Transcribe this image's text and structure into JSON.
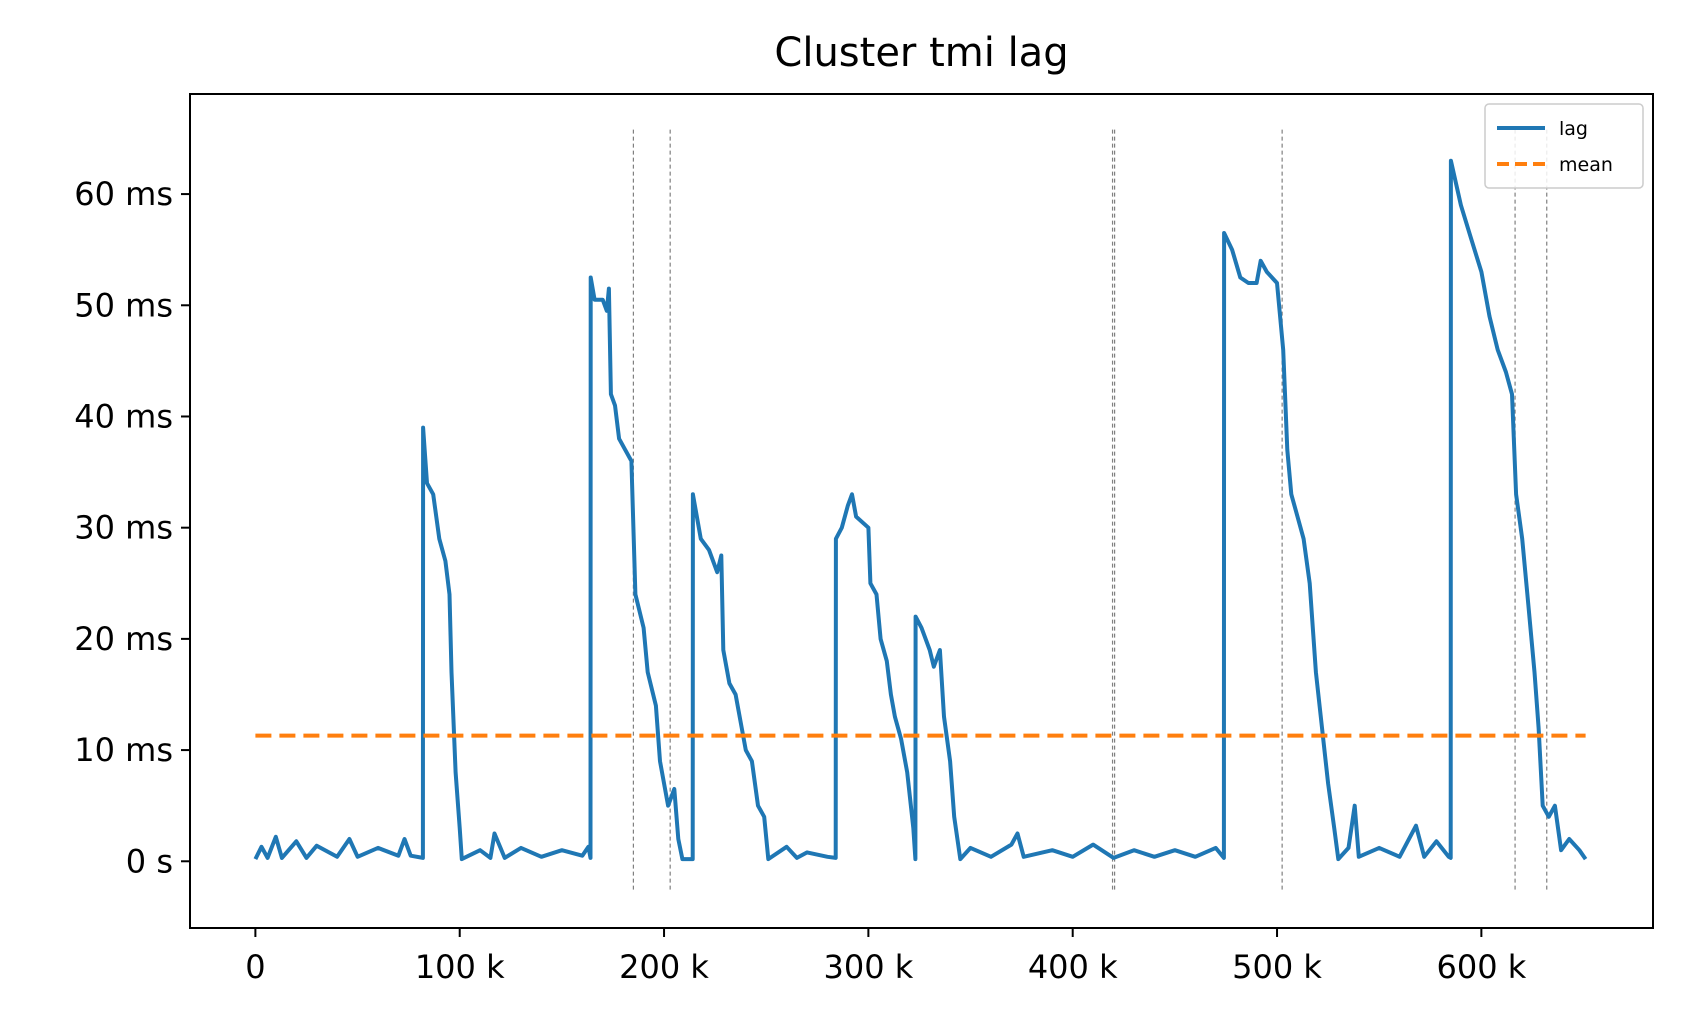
{
  "chart_data": {
    "type": "line",
    "title": "Cluster tmi lag",
    "xlabel": "",
    "ylabel": "",
    "xlim": [
      -32000,
      684000
    ],
    "ylim": [
      -6,
      69
    ],
    "x_ticks": [
      {
        "value": 0,
        "label": "0"
      },
      {
        "value": 100000,
        "label": "100 k"
      },
      {
        "value": 200000,
        "label": "200 k"
      },
      {
        "value": 300000,
        "label": "300 k"
      },
      {
        "value": 400000,
        "label": "400 k"
      },
      {
        "value": 500000,
        "label": "500 k"
      },
      {
        "value": 600000,
        "label": "600 k"
      }
    ],
    "y_ticks": [
      {
        "value": 0,
        "label": "0 s"
      },
      {
        "value": 10,
        "label": "10 ms"
      },
      {
        "value": 20,
        "label": "20 ms"
      },
      {
        "value": 30,
        "label": "30 ms"
      },
      {
        "value": 40,
        "label": "40 ms"
      },
      {
        "value": 50,
        "label": "50 ms"
      },
      {
        "value": 60,
        "label": "60 ms"
      }
    ],
    "grid": false,
    "legend_position": "top-right",
    "legend": [
      {
        "name": "lag",
        "style": "solid",
        "color": "#1f77b4"
      },
      {
        "name": "mean",
        "style": "dashed",
        "color": "#ff7f0e"
      }
    ],
    "series": [
      {
        "name": "lag",
        "color": "#1f77b4",
        "style": "solid",
        "points": [
          [
            0,
            0.2
          ],
          [
            3000,
            1.3
          ],
          [
            6000,
            0.3
          ],
          [
            10000,
            2.2
          ],
          [
            13000,
            0.3
          ],
          [
            20000,
            1.8
          ],
          [
            25000,
            0.3
          ],
          [
            30000,
            1.4
          ],
          [
            40000,
            0.4
          ],
          [
            46000,
            2.0
          ],
          [
            50000,
            0.4
          ],
          [
            60000,
            1.2
          ],
          [
            70000,
            0.5
          ],
          [
            73000,
            2.0
          ],
          [
            76000,
            0.5
          ],
          [
            82000,
            0.3
          ],
          [
            82100,
            39
          ],
          [
            84000,
            34
          ],
          [
            87000,
            33
          ],
          [
            90000,
            29
          ],
          [
            93000,
            27
          ],
          [
            95000,
            24
          ],
          [
            96000,
            17
          ],
          [
            98000,
            8
          ],
          [
            100000,
            3
          ],
          [
            101000,
            0.2
          ],
          [
            110000,
            1.0
          ],
          [
            115000,
            0.3
          ],
          [
            117000,
            2.5
          ],
          [
            122000,
            0.3
          ],
          [
            130000,
            1.2
          ],
          [
            140000,
            0.4
          ],
          [
            150000,
            1.0
          ],
          [
            160000,
            0.5
          ],
          [
            163000,
            1.3
          ],
          [
            164000,
            0.3
          ],
          [
            164100,
            52.5
          ],
          [
            166000,
            50.5
          ],
          [
            170000,
            50.5
          ],
          [
            172000,
            49.5
          ],
          [
            173000,
            51.5
          ],
          [
            174000,
            42
          ],
          [
            176000,
            41
          ],
          [
            178000,
            38
          ],
          [
            181000,
            37
          ],
          [
            184000,
            36
          ],
          [
            186000,
            24
          ],
          [
            190000,
            21
          ],
          [
            192000,
            17
          ],
          [
            196000,
            14
          ],
          [
            198000,
            9
          ],
          [
            202000,
            5
          ],
          [
            205000,
            6.5
          ],
          [
            207000,
            2
          ],
          [
            209000,
            0.2
          ],
          [
            214000,
            0.2
          ],
          [
            214100,
            33
          ],
          [
            218000,
            29
          ],
          [
            222000,
            28
          ],
          [
            226000,
            26
          ],
          [
            228000,
            27.5
          ],
          [
            229000,
            19
          ],
          [
            232000,
            16
          ],
          [
            235000,
            15
          ],
          [
            238000,
            12
          ],
          [
            240000,
            10
          ],
          [
            243000,
            9
          ],
          [
            246000,
            5
          ],
          [
            249000,
            4
          ],
          [
            251000,
            0.2
          ],
          [
            260000,
            1.3
          ],
          [
            265000,
            0.3
          ],
          [
            270000,
            0.8
          ],
          [
            280000,
            0.4
          ],
          [
            284000,
            0.3
          ],
          [
            284100,
            29
          ],
          [
            287000,
            30
          ],
          [
            290000,
            32
          ],
          [
            292000,
            33
          ],
          [
            294000,
            31
          ],
          [
            300000,
            30
          ],
          [
            301000,
            25
          ],
          [
            304000,
            24
          ],
          [
            306000,
            20
          ],
          [
            309000,
            18
          ],
          [
            311000,
            15
          ],
          [
            313000,
            13
          ],
          [
            316000,
            11
          ],
          [
            319000,
            8
          ],
          [
            322000,
            3
          ],
          [
            323000,
            0.2
          ],
          [
            323100,
            22
          ],
          [
            326000,
            21
          ],
          [
            330000,
            19
          ],
          [
            332000,
            17.5
          ],
          [
            335000,
            19
          ],
          [
            337000,
            13
          ],
          [
            340000,
            9
          ],
          [
            342000,
            4
          ],
          [
            345000,
            0.2
          ],
          [
            350000,
            1.2
          ],
          [
            360000,
            0.4
          ],
          [
            370000,
            1.5
          ],
          [
            373000,
            2.5
          ],
          [
            376000,
            0.4
          ],
          [
            390000,
            1.0
          ],
          [
            400000,
            0.4
          ],
          [
            410000,
            1.5
          ],
          [
            420000,
            0.3
          ],
          [
            430000,
            1.0
          ],
          [
            440000,
            0.4
          ],
          [
            450000,
            1.0
          ],
          [
            460000,
            0.4
          ],
          [
            470000,
            1.2
          ],
          [
            474000,
            0.3
          ],
          [
            474100,
            56.5
          ],
          [
            478000,
            55
          ],
          [
            482000,
            52.5
          ],
          [
            486000,
            52
          ],
          [
            490000,
            52
          ],
          [
            492000,
            54
          ],
          [
            495000,
            53
          ],
          [
            500000,
            52
          ],
          [
            503000,
            46
          ],
          [
            505000,
            37
          ],
          [
            507000,
            33
          ],
          [
            510000,
            31
          ],
          [
            513000,
            29
          ],
          [
            516000,
            25
          ],
          [
            519000,
            17
          ],
          [
            522000,
            12
          ],
          [
            525000,
            7
          ],
          [
            528000,
            3
          ],
          [
            530000,
            0.2
          ],
          [
            535000,
            1.2
          ],
          [
            538000,
            5
          ],
          [
            540000,
            0.4
          ],
          [
            550000,
            1.2
          ],
          [
            560000,
            0.4
          ],
          [
            568000,
            3.2
          ],
          [
            572000,
            0.4
          ],
          [
            578000,
            1.8
          ],
          [
            584000,
            0.4
          ],
          [
            585000,
            0.3
          ],
          [
            585100,
            63
          ],
          [
            590000,
            59
          ],
          [
            595000,
            56
          ],
          [
            600000,
            53
          ],
          [
            604000,
            49
          ],
          [
            608000,
            46
          ],
          [
            612000,
            44
          ],
          [
            615000,
            42
          ],
          [
            617000,
            33
          ],
          [
            620000,
            29
          ],
          [
            623000,
            23
          ],
          [
            626000,
            17
          ],
          [
            628000,
            12
          ],
          [
            630000,
            5
          ],
          [
            633000,
            4
          ],
          [
            636000,
            5
          ],
          [
            639000,
            1
          ],
          [
            643000,
            2
          ],
          [
            648000,
            1
          ],
          [
            651000,
            0.2
          ]
        ]
      },
      {
        "name": "mean",
        "color": "#ff7f0e",
        "style": "dashed",
        "points": [
          [
            0,
            11.3
          ],
          [
            651000,
            11.3
          ]
        ]
      }
    ],
    "vertical_markers": [
      185000,
      203000,
      419500,
      420500,
      502500,
      616500,
      632000
    ]
  }
}
